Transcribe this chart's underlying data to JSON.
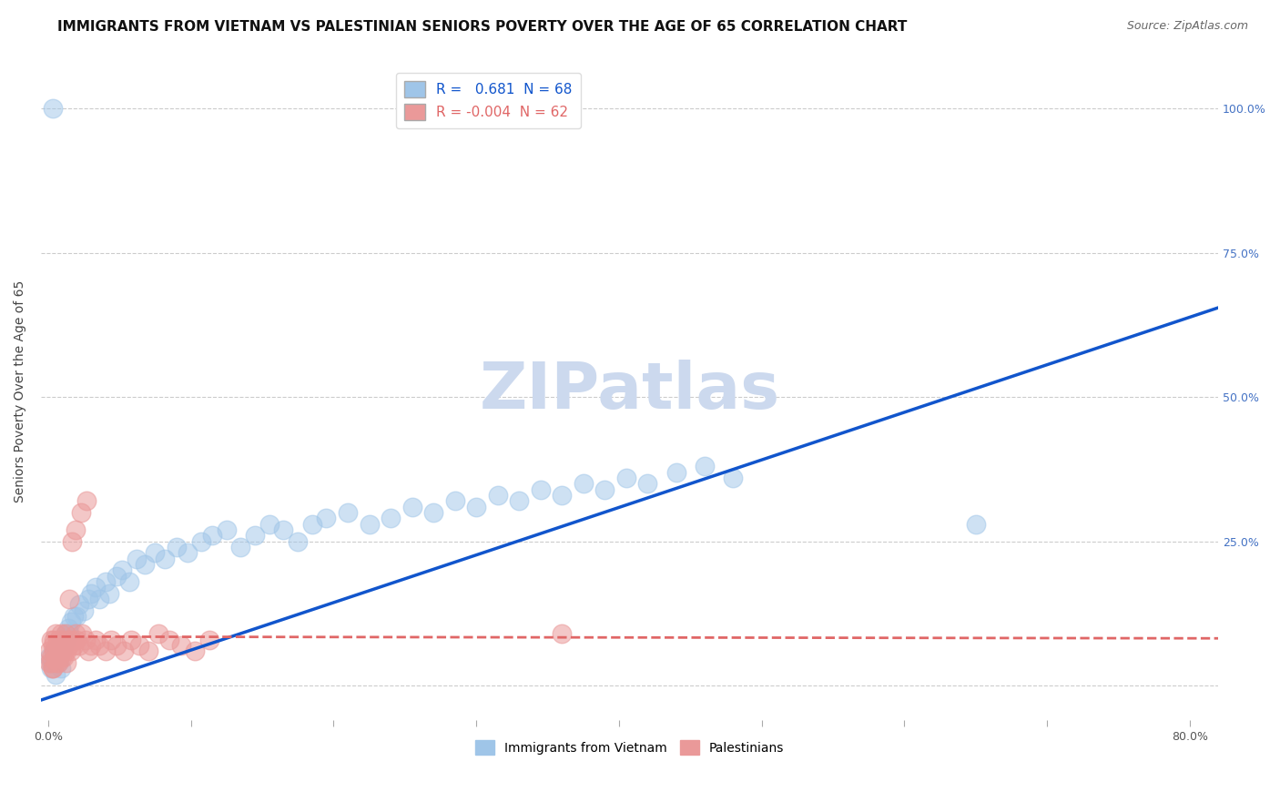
{
  "title": "IMMIGRANTS FROM VIETNAM VS PALESTINIAN SENIORS POVERTY OVER THE AGE OF 65 CORRELATION CHART",
  "source": "Source: ZipAtlas.com",
  "ylabel": "Seniors Poverty Over the Age of 65",
  "xlabel": "",
  "xlim": [
    -0.005,
    0.82
  ],
  "ylim": [
    -0.06,
    1.08
  ],
  "yticks": [
    0.0,
    0.25,
    0.5,
    0.75,
    1.0
  ],
  "ytick_labels_right": [
    "",
    "25.0%",
    "50.0%",
    "75.0%",
    "100.0%"
  ],
  "xticks": [
    0.0,
    0.1,
    0.2,
    0.3,
    0.4,
    0.5,
    0.6,
    0.7,
    0.8
  ],
  "xtick_labels": [
    "0.0%",
    "",
    "",
    "",
    "",
    "",
    "",
    "",
    "80.0%"
  ],
  "blue_color": "#9fc5e8",
  "pink_color": "#ea9999",
  "blue_line_color": "#1155cc",
  "pink_line_color": "#e06666",
  "R_blue": 0.681,
  "N_blue": 68,
  "R_pink": -0.004,
  "N_pink": 62,
  "watermark": "ZIPatlas",
  "legend_labels": [
    "Immigrants from Vietnam",
    "Palestinians"
  ],
  "blue_scatter_x": [
    0.001,
    0.002,
    0.003,
    0.004,
    0.005,
    0.005,
    0.006,
    0.007,
    0.008,
    0.008,
    0.009,
    0.01,
    0.01,
    0.011,
    0.012,
    0.013,
    0.014,
    0.015,
    0.016,
    0.018,
    0.02,
    0.022,
    0.025,
    0.028,
    0.03,
    0.033,
    0.036,
    0.04,
    0.043,
    0.048,
    0.052,
    0.057,
    0.062,
    0.068,
    0.075,
    0.082,
    0.09,
    0.098,
    0.107,
    0.115,
    0.125,
    0.135,
    0.145,
    0.155,
    0.165,
    0.175,
    0.185,
    0.195,
    0.21,
    0.225,
    0.24,
    0.255,
    0.27,
    0.285,
    0.3,
    0.315,
    0.33,
    0.345,
    0.36,
    0.375,
    0.39,
    0.405,
    0.42,
    0.44,
    0.46,
    0.48,
    0.65,
    0.003
  ],
  "blue_scatter_y": [
    0.05,
    0.03,
    0.04,
    0.06,
    0.05,
    0.02,
    0.06,
    0.04,
    0.05,
    0.07,
    0.03,
    0.06,
    0.08,
    0.07,
    0.09,
    0.08,
    0.1,
    0.09,
    0.11,
    0.12,
    0.12,
    0.14,
    0.13,
    0.15,
    0.16,
    0.17,
    0.15,
    0.18,
    0.16,
    0.19,
    0.2,
    0.18,
    0.22,
    0.21,
    0.23,
    0.22,
    0.24,
    0.23,
    0.25,
    0.26,
    0.27,
    0.24,
    0.26,
    0.28,
    0.27,
    0.25,
    0.28,
    0.29,
    0.3,
    0.28,
    0.29,
    0.31,
    0.3,
    0.32,
    0.31,
    0.33,
    0.32,
    0.34,
    0.33,
    0.35,
    0.34,
    0.36,
    0.35,
    0.37,
    0.38,
    0.36,
    0.28,
    1.0
  ],
  "pink_scatter_x": [
    0.001,
    0.001,
    0.002,
    0.002,
    0.003,
    0.003,
    0.004,
    0.004,
    0.005,
    0.005,
    0.006,
    0.006,
    0.007,
    0.007,
    0.008,
    0.008,
    0.009,
    0.009,
    0.01,
    0.01,
    0.011,
    0.012,
    0.013,
    0.014,
    0.015,
    0.016,
    0.017,
    0.018,
    0.019,
    0.02,
    0.022,
    0.024,
    0.026,
    0.028,
    0.03,
    0.033,
    0.036,
    0.04,
    0.044,
    0.048,
    0.053,
    0.058,
    0.064,
    0.07,
    0.077,
    0.085,
    0.093,
    0.103,
    0.113,
    0.002,
    0.003,
    0.005,
    0.007,
    0.009,
    0.011,
    0.013,
    0.015,
    0.017,
    0.019,
    0.023,
    0.027,
    0.36
  ],
  "pink_scatter_y": [
    0.06,
    0.04,
    0.08,
    0.05,
    0.07,
    0.03,
    0.06,
    0.08,
    0.05,
    0.09,
    0.07,
    0.04,
    0.06,
    0.08,
    0.05,
    0.07,
    0.06,
    0.09,
    0.08,
    0.05,
    0.07,
    0.09,
    0.06,
    0.08,
    0.07,
    0.06,
    0.08,
    0.07,
    0.09,
    0.08,
    0.07,
    0.09,
    0.08,
    0.06,
    0.07,
    0.08,
    0.07,
    0.06,
    0.08,
    0.07,
    0.06,
    0.08,
    0.07,
    0.06,
    0.09,
    0.08,
    0.07,
    0.06,
    0.08,
    0.04,
    0.03,
    0.05,
    0.04,
    0.06,
    0.05,
    0.04,
    0.15,
    0.25,
    0.27,
    0.3,
    0.32,
    0.09
  ],
  "blue_trend_x": [
    -0.005,
    0.82
  ],
  "blue_trend_y": [
    -0.025,
    0.655
  ],
  "pink_trend_x": [
    0.0,
    0.82
  ],
  "pink_trend_y": [
    0.085,
    0.082
  ],
  "grid_color": "#cccccc",
  "background_color": "#ffffff",
  "title_fontsize": 11,
  "axis_label_fontsize": 10,
  "tick_fontsize": 9,
  "watermark_fontsize": 52,
  "watermark_color": "#ccd9ee",
  "right_tick_color": "#4472c4",
  "source_fontsize": 9
}
